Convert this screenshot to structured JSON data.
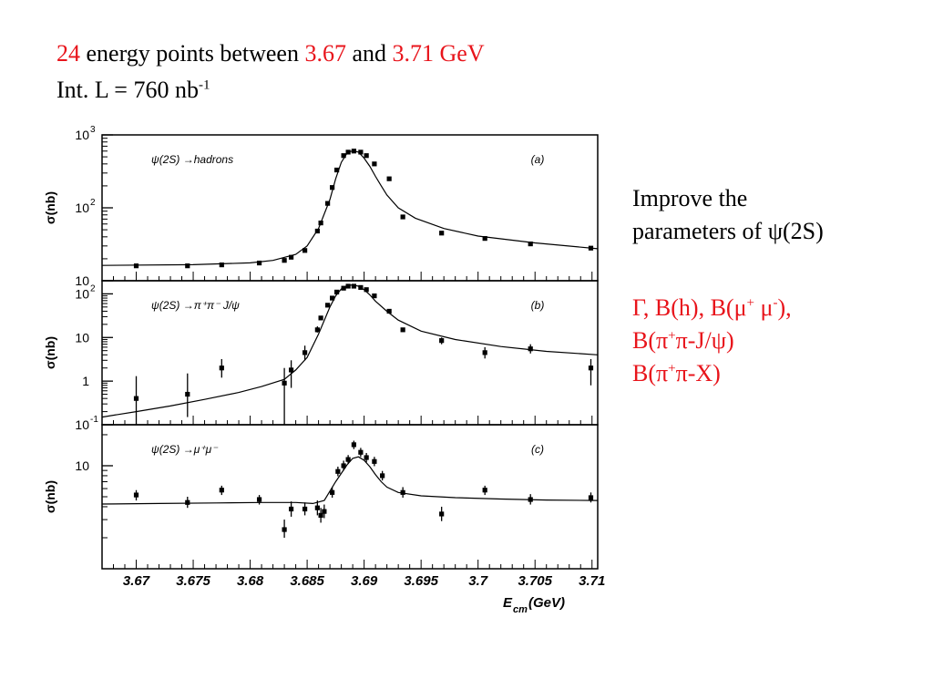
{
  "header": {
    "n_points": "24",
    "text1": " energy points between ",
    "e_low": "3.67",
    "text2": " and ",
    "e_high": "3.71 GeV",
    "lumi_prefix": "Int. L = 760 nb",
    "lumi_exp": "-1"
  },
  "side": {
    "line1": "Improve the",
    "line2": "parameters of ψ(2S)",
    "r1": "Γ, B(h), B(μ",
    "r1_sup1": "+",
    "r1_mid": " μ",
    "r1_sup2": "-",
    "r1_end": "),",
    "r2_a": "B(π",
    "r2_sup": "+",
    "r2_b": "π-J/ψ)",
    "r3_a": "B(π",
    "r3_sup": "+",
    "r3_b": "π-X)"
  },
  "chart_data": [
    {
      "type": "scatter",
      "panel_tag": "(a)",
      "process": "ψ(2S) →hadrons",
      "ylabel": "σ(nb)",
      "yscale": "log",
      "ylim": [
        10,
        1000
      ],
      "yticks": [
        {
          "v": 10,
          "base": "10",
          "exp": ""
        },
        {
          "v": 100,
          "base": "10",
          "exp": "2"
        },
        {
          "v": 1000,
          "base": "10",
          "exp": "3"
        }
      ],
      "points": [
        {
          "x": 3.67,
          "y": 16
        },
        {
          "x": 3.6745,
          "y": 16
        },
        {
          "x": 3.6775,
          "y": 16.5
        },
        {
          "x": 3.6808,
          "y": 17.5
        },
        {
          "x": 3.683,
          "y": 19
        },
        {
          "x": 3.6836,
          "y": 21
        },
        {
          "x": 3.6848,
          "y": 26
        },
        {
          "x": 3.6859,
          "y": 48
        },
        {
          "x": 3.6862,
          "y": 62
        },
        {
          "x": 3.6868,
          "y": 115
        },
        {
          "x": 3.6872,
          "y": 190
        },
        {
          "x": 3.6876,
          "y": 330
        },
        {
          "x": 3.6882,
          "y": 520
        },
        {
          "x": 3.6886,
          "y": 580
        },
        {
          "x": 3.6891,
          "y": 600
        },
        {
          "x": 3.6897,
          "y": 580
        },
        {
          "x": 3.6902,
          "y": 520
        },
        {
          "x": 3.6909,
          "y": 400
        },
        {
          "x": 3.6922,
          "y": 250
        },
        {
          "x": 3.6934,
          "y": 75
        },
        {
          "x": 3.6968,
          "y": 45
        },
        {
          "x": 3.7006,
          "y": 38
        },
        {
          "x": 3.7046,
          "y": 32
        },
        {
          "x": 3.7099,
          "y": 28
        }
      ],
      "curve": [
        [
          3.667,
          16.2
        ],
        [
          3.675,
          16.6
        ],
        [
          3.68,
          17.6
        ],
        [
          3.682,
          19
        ],
        [
          3.684,
          23
        ],
        [
          3.685,
          30
        ],
        [
          3.686,
          52
        ],
        [
          3.687,
          130
        ],
        [
          3.6875,
          250
        ],
        [
          3.688,
          420
        ],
        [
          3.6885,
          560
        ],
        [
          3.689,
          610
        ],
        [
          3.6895,
          580
        ],
        [
          3.69,
          480
        ],
        [
          3.6905,
          370
        ],
        [
          3.691,
          270
        ],
        [
          3.6915,
          200
        ],
        [
          3.692,
          150
        ],
        [
          3.693,
          100
        ],
        [
          3.6945,
          72
        ],
        [
          3.697,
          52
        ],
        [
          3.7,
          41
        ],
        [
          3.705,
          33
        ],
        [
          3.7105,
          27.5
        ]
      ]
    },
    {
      "type": "scatter",
      "panel_tag": "(b)",
      "process": "ψ(2S) →π⁺π⁻ J/ψ",
      "ylabel": "σ(nb)",
      "yscale": "log",
      "ylim": [
        0.1,
        200
      ],
      "yticks": [
        {
          "v": 0.1,
          "base": "10",
          "exp": "-1"
        },
        {
          "v": 1,
          "base": "1",
          "exp": ""
        },
        {
          "v": 10,
          "base": "10",
          "exp": ""
        },
        {
          "v": 100,
          "base": "10",
          "exp": "2"
        }
      ],
      "points": [
        {
          "x": 3.67,
          "y": 0.4,
          "err_lo": 0.1,
          "err_hi": 1.3
        },
        {
          "x": 3.6745,
          "y": 0.5,
          "err_lo": 0.15,
          "err_hi": 1.5
        },
        {
          "x": 3.6775,
          "y": 2.0,
          "err_lo": 1.2,
          "err_hi": 3.2
        },
        {
          "x": 3.683,
          "y": 0.9,
          "err_lo": 0.1,
          "err_hi": 2.0
        },
        {
          "x": 3.6836,
          "y": 1.8,
          "err_lo": 0.7,
          "err_hi": 3.0
        },
        {
          "x": 3.6848,
          "y": 4.5,
          "err_lo": 3.0,
          "err_hi": 6.5
        },
        {
          "x": 3.6859,
          "y": 15,
          "err_lo": 13,
          "err_hi": 18
        },
        {
          "x": 3.6862,
          "y": 28
        },
        {
          "x": 3.6868,
          "y": 55
        },
        {
          "x": 3.6872,
          "y": 80
        },
        {
          "x": 3.6876,
          "y": 110
        },
        {
          "x": 3.6882,
          "y": 135
        },
        {
          "x": 3.6886,
          "y": 150
        },
        {
          "x": 3.6891,
          "y": 150
        },
        {
          "x": 3.6897,
          "y": 140
        },
        {
          "x": 3.6902,
          "y": 125
        },
        {
          "x": 3.6909,
          "y": 90
        },
        {
          "x": 3.6922,
          "y": 40
        },
        {
          "x": 3.6934,
          "y": 15
        },
        {
          "x": 3.6968,
          "y": 8.5,
          "err_lo": 7,
          "err_hi": 10
        },
        {
          "x": 3.7006,
          "y": 4.5,
          "err_lo": 3.3,
          "err_hi": 6
        },
        {
          "x": 3.7046,
          "y": 5.5,
          "err_lo": 4.3,
          "err_hi": 7
        },
        {
          "x": 3.7099,
          "y": 2.0,
          "err_lo": 0.8,
          "err_hi": 3.2
        }
      ],
      "curve": [
        [
          3.667,
          0.15
        ],
        [
          3.67,
          0.2
        ],
        [
          3.673,
          0.27
        ],
        [
          3.676,
          0.38
        ],
        [
          3.679,
          0.55
        ],
        [
          3.681,
          0.75
        ],
        [
          3.683,
          1.1
        ],
        [
          3.684,
          1.8
        ],
        [
          3.685,
          3.5
        ],
        [
          3.686,
          12
        ],
        [
          3.687,
          50
        ],
        [
          3.6875,
          90
        ],
        [
          3.688,
          130
        ],
        [
          3.6885,
          155
        ],
        [
          3.689,
          160
        ],
        [
          3.6895,
          150
        ],
        [
          3.69,
          125
        ],
        [
          3.6905,
          95
        ],
        [
          3.691,
          68
        ],
        [
          3.692,
          40
        ],
        [
          3.693,
          25
        ],
        [
          3.695,
          14
        ],
        [
          3.698,
          9
        ],
        [
          3.702,
          6.2
        ],
        [
          3.706,
          4.8
        ],
        [
          3.7105,
          4.0
        ]
      ]
    },
    {
      "type": "scatter",
      "panel_tag": "(c)",
      "process": "ψ(2S) →μ⁺μ⁻",
      "ylabel": "σ(nb)",
      "yscale": "log",
      "ylim": [
        1,
        25
      ],
      "yticks": [
        {
          "v": 10,
          "base": "10",
          "exp": ""
        }
      ],
      "points": [
        {
          "x": 3.67,
          "y": 5.2,
          "err_lo": 4.6,
          "err_hi": 5.8
        },
        {
          "x": 3.6745,
          "y": 4.4,
          "err_lo": 3.9,
          "err_hi": 5.0
        },
        {
          "x": 3.6775,
          "y": 5.8,
          "err_lo": 5.2,
          "err_hi": 6.4
        },
        {
          "x": 3.6808,
          "y": 4.7,
          "err_lo": 4.2,
          "err_hi": 5.2
        },
        {
          "x": 3.683,
          "y": 2.4,
          "err_lo": 2.0,
          "err_hi": 3.0
        },
        {
          "x": 3.6836,
          "y": 3.8,
          "err_lo": 3.2,
          "err_hi": 4.5
        },
        {
          "x": 3.6848,
          "y": 3.8,
          "err_lo": 3.3,
          "err_hi": 4.4
        },
        {
          "x": 3.6859,
          "y": 3.9,
          "err_lo": 3.3,
          "err_hi": 4.6
        },
        {
          "x": 3.6862,
          "y": 3.3,
          "err_lo": 2.8,
          "err_hi": 3.9
        },
        {
          "x": 3.6865,
          "y": 3.6,
          "err_lo": 3.1,
          "err_hi": 4.2
        },
        {
          "x": 3.6872,
          "y": 5.5,
          "err_lo": 4.9,
          "err_hi": 6.2
        },
        {
          "x": 3.6877,
          "y": 8.8,
          "err_lo": 7.9,
          "err_hi": 9.8
        },
        {
          "x": 3.6882,
          "y": 10,
          "err_lo": 9.0,
          "err_hi": 11.2
        },
        {
          "x": 3.6886,
          "y": 11.5,
          "err_lo": 10.4,
          "err_hi": 12.7
        },
        {
          "x": 3.6891,
          "y": 16,
          "err_lo": 14.5,
          "err_hi": 17.5
        },
        {
          "x": 3.6897,
          "y": 13.5,
          "err_lo": 12.2,
          "err_hi": 14.9
        },
        {
          "x": 3.6902,
          "y": 12,
          "err_lo": 10.8,
          "err_hi": 13.3
        },
        {
          "x": 3.6909,
          "y": 11,
          "err_lo": 9.9,
          "err_hi": 12.2
        },
        {
          "x": 3.6916,
          "y": 8.0,
          "err_lo": 7.2,
          "err_hi": 8.9
        },
        {
          "x": 3.6934,
          "y": 5.5,
          "err_lo": 4.9,
          "err_hi": 6.2
        },
        {
          "x": 3.6968,
          "y": 3.4,
          "err_lo": 2.9,
          "err_hi": 4.0
        },
        {
          "x": 3.7006,
          "y": 5.8,
          "err_lo": 5.2,
          "err_hi": 6.4
        },
        {
          "x": 3.7046,
          "y": 4.7,
          "err_lo": 4.2,
          "err_hi": 5.3
        },
        {
          "x": 3.7099,
          "y": 4.9,
          "err_lo": 4.4,
          "err_hi": 5.5
        }
      ],
      "curve": [
        [
          3.667,
          4.25
        ],
        [
          3.672,
          4.3
        ],
        [
          3.677,
          4.35
        ],
        [
          3.681,
          4.4
        ],
        [
          3.684,
          4.4
        ],
        [
          3.6855,
          4.3
        ],
        [
          3.6865,
          4.6
        ],
        [
          3.6875,
          7.0
        ],
        [
          3.6885,
          10.2
        ],
        [
          3.689,
          11.8
        ],
        [
          3.6895,
          12.2
        ],
        [
          3.69,
          11.3
        ],
        [
          3.6905,
          9.8
        ],
        [
          3.691,
          8.2
        ],
        [
          3.6915,
          7.0
        ],
        [
          3.692,
          6.2
        ],
        [
          3.693,
          5.5
        ],
        [
          3.695,
          5.1
        ],
        [
          3.698,
          4.9
        ],
        [
          3.702,
          4.75
        ],
        [
          3.706,
          4.65
        ],
        [
          3.7105,
          4.6
        ]
      ]
    }
  ],
  "x_axis": {
    "xlim": [
      3.667,
      3.7105
    ],
    "ticks": [
      "3.67",
      "3.675",
      "3.68",
      "3.685",
      "3.69",
      "3.695",
      "3.7",
      "3.705",
      "3.71"
    ],
    "tick_values": [
      3.67,
      3.675,
      3.68,
      3.685,
      3.69,
      3.695,
      3.7,
      3.705,
      3.71
    ],
    "label_main": "E",
    "label_sub": "cm",
    "label_unit": "(GeV)"
  }
}
